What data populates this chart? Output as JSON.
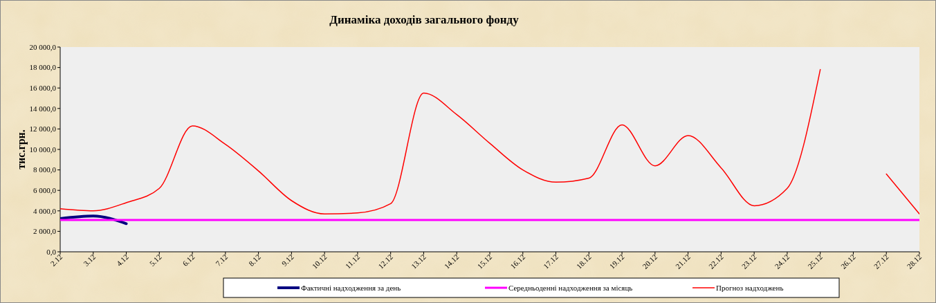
{
  "chart_data": {
    "type": "line",
    "title": "Динаміка доходів загального фонду",
    "ylabel": "тис.грн.",
    "categories": [
      "2.12",
      "3.12",
      "4.12",
      "5.12",
      "6.12",
      "7.12",
      "8.12",
      "9.12",
      "10.12",
      "11.12",
      "12.12",
      "13.12",
      "14.12",
      "15.12",
      "16.12",
      "17.12",
      "18.12",
      "19.12",
      "20.12",
      "21.12",
      "22.12",
      "23.12",
      "24.12",
      "25.12",
      "26.12",
      "27.12",
      "28.12"
    ],
    "ylim": [
      0,
      20000
    ],
    "yticks": [
      {
        "value": 0,
        "label": "0,0"
      },
      {
        "value": 2000,
        "label": "2 000,0"
      },
      {
        "value": 4000,
        "label": "4 000,0"
      },
      {
        "value": 6000,
        "label": "6 000,0"
      },
      {
        "value": 8000,
        "label": "8 000,0"
      },
      {
        "value": 10000,
        "label": "10 000,0"
      },
      {
        "value": 12000,
        "label": "12 000,0"
      },
      {
        "value": 14000,
        "label": "14 000,0"
      },
      {
        "value": 16000,
        "label": "16 000,0"
      },
      {
        "value": 18000,
        "label": "18 000,0"
      },
      {
        "value": 20000,
        "label": "20 000,0"
      }
    ],
    "series": [
      {
        "name": "Фактичні надходження за день",
        "color": "#000080",
        "values": [
          3250,
          3500,
          2750,
          null,
          null,
          null,
          null,
          null,
          null,
          null,
          null,
          null,
          null,
          null,
          null,
          null,
          null,
          null,
          null,
          null,
          null,
          null,
          null,
          null,
          null,
          null,
          null
        ]
      },
      {
        "name": "Середньоденні надходження за місяць",
        "color": "#ff00ff",
        "values": [
          3100,
          3100,
          3100,
          3100,
          3100,
          3100,
          3100,
          3100,
          3100,
          3100,
          3100,
          3100,
          3100,
          3100,
          3100,
          3100,
          3100,
          3100,
          3100,
          3100,
          3100,
          3100,
          3100,
          3100,
          3100,
          3100,
          3100
        ]
      },
      {
        "name": "Прогноз надходжень",
        "color": "#ff0000",
        "values": [
          4200,
          4000,
          4800,
          6200,
          12300,
          10500,
          7900,
          5000,
          3700,
          3800,
          4700,
          15500,
          13400,
          10600,
          8000,
          6800,
          7200,
          12400,
          8400,
          11350,
          8200,
          4500,
          6200,
          17800,
          null,
          7600,
          3700
        ]
      }
    ],
    "grid": false,
    "legend": "bottom",
    "marker": "none",
    "line_style": "solid"
  }
}
